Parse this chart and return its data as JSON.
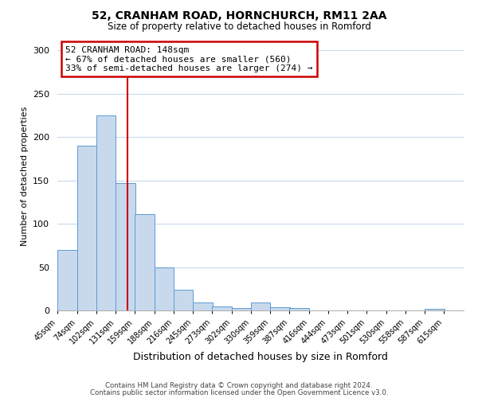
{
  "title": "52, CRANHAM ROAD, HORNCHURCH, RM11 2AA",
  "subtitle": "Size of property relative to detached houses in Romford",
  "xlabel": "Distribution of detached houses by size in Romford",
  "ylabel": "Number of detached properties",
  "bar_left_edges": [
    45,
    74,
    102,
    131,
    159,
    188,
    216,
    245,
    273,
    302,
    330,
    359,
    387,
    416,
    444,
    473,
    501,
    530,
    558,
    587
  ],
  "bar_heights": [
    70,
    190,
    225,
    147,
    111,
    50,
    24,
    9,
    5,
    3,
    9,
    4,
    3,
    0,
    0,
    0,
    0,
    0,
    0,
    2
  ],
  "bin_width": 29,
  "tick_labels": [
    "45sqm",
    "74sqm",
    "102sqm",
    "131sqm",
    "159sqm",
    "188sqm",
    "216sqm",
    "245sqm",
    "273sqm",
    "302sqm",
    "330sqm",
    "359sqm",
    "387sqm",
    "416sqm",
    "444sqm",
    "473sqm",
    "501sqm",
    "530sqm",
    "558sqm",
    "587sqm",
    "615sqm"
  ],
  "tick_positions": [
    45,
    74,
    102,
    131,
    159,
    188,
    216,
    245,
    273,
    302,
    330,
    359,
    387,
    416,
    444,
    473,
    501,
    530,
    558,
    587,
    615
  ],
  "bar_color": "#c8d9ed",
  "bar_edge_color": "#5b9bd5",
  "vline_x": 148,
  "vline_color": "#cc0000",
  "ylim": [
    0,
    310
  ],
  "yticks": [
    0,
    50,
    100,
    150,
    200,
    250,
    300
  ],
  "xlim_left": 45,
  "xlim_right": 644,
  "annotation_line1": "52 CRANHAM ROAD: 148sqm",
  "annotation_line2": "← 67% of detached houses are smaller (560)",
  "annotation_line3": "33% of semi-detached houses are larger (274) →",
  "annotation_box_color": "#cc0000",
  "annotation_box_bg": "#ffffff",
  "footer_line1": "Contains HM Land Registry data © Crown copyright and database right 2024.",
  "footer_line2": "Contains public sector information licensed under the Open Government Licence v3.0.",
  "background_color": "#ffffff",
  "grid_color": "#c8d9ed"
}
